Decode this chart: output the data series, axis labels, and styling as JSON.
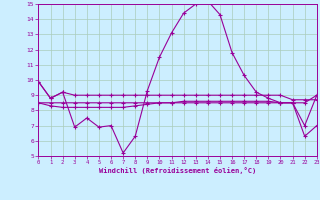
{
  "xlabel": "Windchill (Refroidissement éolien,°C)",
  "ylabel": "",
  "background_color": "#cceeff",
  "grid_color": "#aaccbb",
  "line_color": "#990099",
  "xlim": [
    0,
    23
  ],
  "ylim": [
    5,
    15
  ],
  "yticks": [
    5,
    6,
    7,
    8,
    9,
    10,
    11,
    12,
    13,
    14,
    15
  ],
  "xticks": [
    0,
    1,
    2,
    3,
    4,
    5,
    6,
    7,
    8,
    9,
    10,
    11,
    12,
    13,
    14,
    15,
    16,
    17,
    18,
    19,
    20,
    21,
    22,
    23
  ],
  "curves": [
    {
      "x": [
        0,
        1,
        2,
        3,
        4,
        5,
        6,
        7,
        8,
        9,
        10,
        11,
        12,
        13,
        14,
        15,
        16,
        17,
        18,
        19,
        20,
        21,
        22,
        23
      ],
      "y": [
        9.9,
        8.8,
        9.2,
        9.0,
        9.0,
        9.0,
        9.0,
        9.0,
        9.0,
        9.0,
        9.0,
        9.0,
        9.0,
        9.0,
        9.0,
        9.0,
        9.0,
        9.0,
        9.0,
        9.0,
        9.0,
        8.7,
        8.7,
        8.7
      ]
    },
    {
      "x": [
        0,
        1,
        2,
        3,
        4,
        5,
        6,
        7,
        8,
        9,
        10,
        11,
        12,
        13,
        14,
        15,
        16,
        17,
        18,
        19,
        20,
        21,
        22,
        23
      ],
      "y": [
        9.9,
        8.8,
        9.2,
        6.9,
        7.5,
        6.9,
        7.0,
        5.2,
        6.3,
        9.3,
        11.5,
        13.1,
        14.4,
        15.0,
        15.2,
        14.3,
        11.8,
        10.3,
        9.2,
        8.8,
        8.5,
        8.5,
        6.3,
        7.0
      ]
    },
    {
      "x": [
        0,
        1,
        2,
        3,
        4,
        5,
        6,
        7,
        8,
        9,
        10,
        11,
        12,
        13,
        14,
        15,
        16,
        17,
        18,
        19,
        20,
        21,
        22,
        23
      ],
      "y": [
        8.5,
        8.5,
        8.5,
        8.5,
        8.5,
        8.5,
        8.5,
        8.5,
        8.5,
        8.5,
        8.5,
        8.5,
        8.5,
        8.5,
        8.5,
        8.5,
        8.5,
        8.5,
        8.5,
        8.5,
        8.5,
        8.5,
        8.5,
        9.0
      ]
    },
    {
      "x": [
        0,
        1,
        2,
        3,
        4,
        5,
        6,
        7,
        8,
        9,
        10,
        11,
        12,
        13,
        14,
        15,
        16,
        17,
        18,
        19,
        20,
        21,
        22,
        23
      ],
      "y": [
        8.5,
        8.3,
        8.2,
        8.2,
        8.2,
        8.2,
        8.2,
        8.2,
        8.3,
        8.4,
        8.5,
        8.5,
        8.6,
        8.6,
        8.6,
        8.6,
        8.6,
        8.6,
        8.6,
        8.6,
        8.5,
        8.5,
        7.0,
        9.0
      ]
    }
  ]
}
